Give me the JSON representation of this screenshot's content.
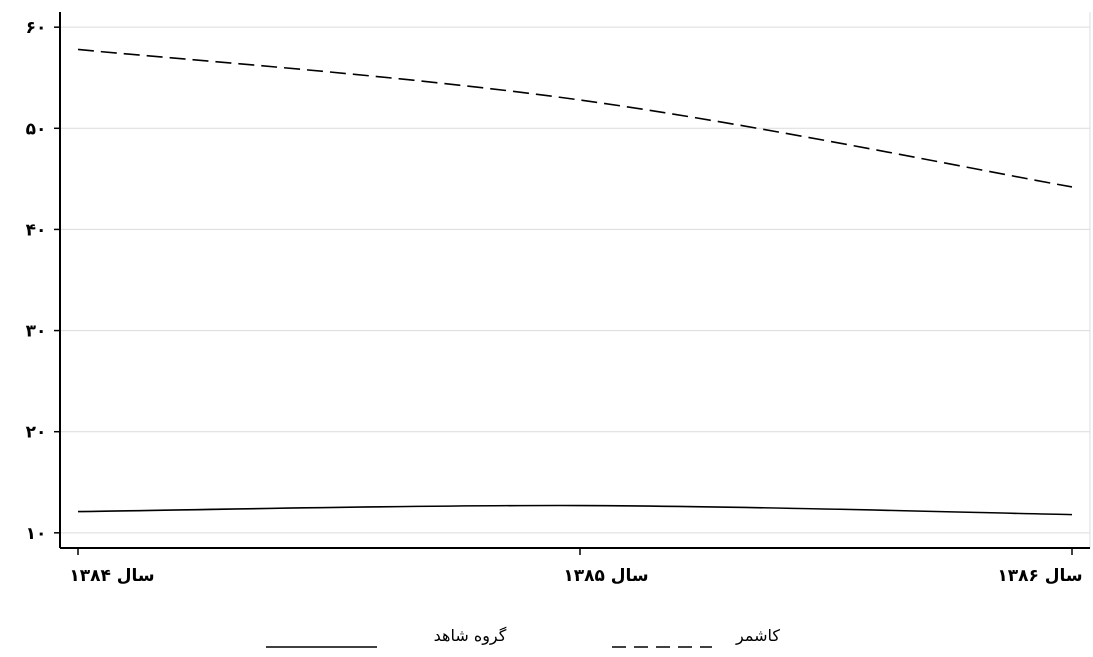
{
  "chart_data": {
    "type": "line",
    "categories": [
      "سال ۱۳۸۴",
      "سال ۱۳۸۵",
      "سال ۱۳۸۶"
    ],
    "y_ticks": [
      {
        "value": 10,
        "label": "۱۰"
      },
      {
        "value": 20,
        "label": "۲۰"
      },
      {
        "value": 30,
        "label": "۳۰"
      },
      {
        "value": 40,
        "label": "۴۰"
      },
      {
        "value": 50,
        "label": "۵۰"
      },
      {
        "value": 60,
        "label": "۶۰"
      }
    ],
    "ylim": [
      8.5,
      61.5
    ],
    "grid": true,
    "legend_position": "bottom",
    "series": [
      {
        "name": "کاشمر",
        "style": "dashed",
        "values": [
          57.8,
          52.8,
          44.2
        ],
        "color": "#000000"
      },
      {
        "name": "گروه شاهد",
        "style": "solid",
        "values": [
          12.1,
          12.7,
          11.8
        ],
        "color": "#000000"
      }
    ]
  }
}
